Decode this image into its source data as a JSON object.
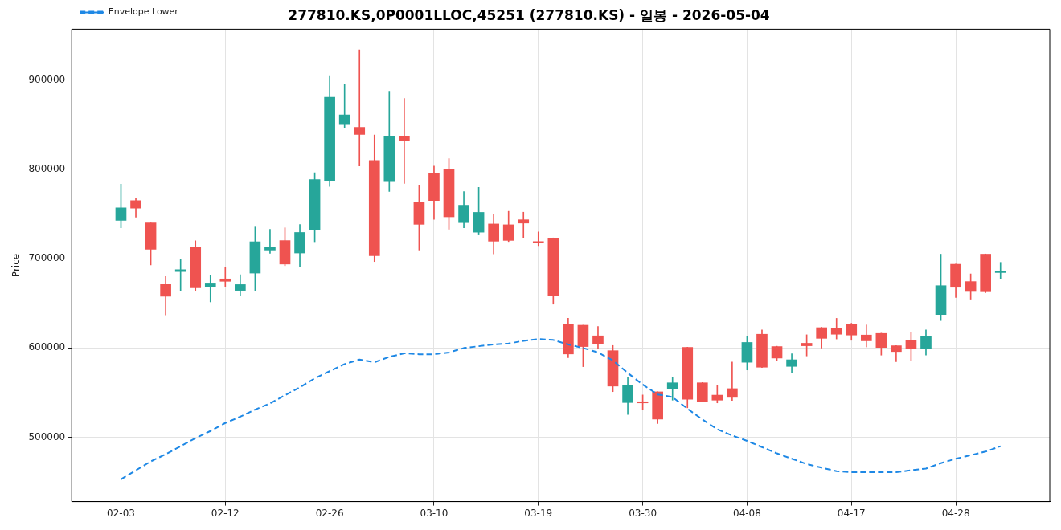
{
  "chart_data": {
    "type": "candlestick",
    "title": "277810.KS,0P0001LLOC,45251 (277810.KS) - 일봉 - 2026-05-04",
    "ylabel": "Price",
    "categories": [
      "02-03",
      null,
      null,
      null,
      null,
      null,
      null,
      "02-12",
      null,
      null,
      null,
      null,
      null,
      null,
      "02-26",
      null,
      null,
      null,
      null,
      null,
      null,
      "03-10",
      null,
      null,
      null,
      null,
      null,
      null,
      "03-19",
      null,
      null,
      null,
      null,
      null,
      null,
      "03-30",
      null,
      null,
      null,
      null,
      null,
      null,
      "04-08",
      null,
      null,
      null,
      null,
      null,
      null,
      "04-17",
      null,
      null,
      null,
      null,
      null,
      null,
      "04-28",
      null,
      null,
      null
    ],
    "ohlc": [
      [
        743000,
        783500,
        734600,
        757000
      ],
      [
        765000,
        767800,
        746600,
        756700
      ],
      [
        740000,
        740000,
        693000,
        710600
      ],
      [
        671000,
        680000,
        637000,
        658000
      ],
      [
        685700,
        699600,
        663600,
        687600
      ],
      [
        712500,
        720000,
        663600,
        667300
      ],
      [
        668200,
        681000,
        651600,
        671900
      ],
      [
        677400,
        690400,
        669000,
        674700
      ],
      [
        664500,
        682000,
        659000,
        671000
      ],
      [
        683900,
        735500,
        664500,
        719000
      ],
      [
        709700,
        732800,
        706000,
        712500
      ],
      [
        720300,
        734600,
        692200,
        694000
      ],
      [
        706400,
        738300,
        691300,
        729400
      ],
      [
        732300,
        796400,
        719000,
        788600
      ],
      [
        787700,
        904300,
        781000,
        880900
      ],
      [
        850100,
        895000,
        846200,
        861000
      ],
      [
        847100,
        934000,
        803900,
        839200
      ],
      [
        810000,
        838500,
        696800,
        703300
      ],
      [
        786400,
        887700,
        775400,
        837500
      ],
      [
        837500,
        879600,
        784400,
        831700
      ],
      [
        763700,
        782600,
        709700,
        738500
      ],
      [
        795100,
        803800,
        744000,
        765300
      ],
      [
        800600,
        812100,
        733000,
        746900
      ],
      [
        740400,
        775200,
        734600,
        759900
      ],
      [
        729700,
        779800,
        726600,
        751900
      ],
      [
        738900,
        750300,
        705400,
        719600
      ],
      [
        738000,
        753100,
        719200,
        720500
      ],
      [
        743600,
        752100,
        723800,
        739900
      ],
      [
        719200,
        730000,
        714600,
        718000
      ],
      [
        722300,
        723300,
        649100,
        658700
      ],
      [
        626500,
        633200,
        589200,
        593300
      ],
      [
        625500,
        625500,
        579100,
        601600
      ],
      [
        613600,
        624000,
        599400,
        604300
      ],
      [
        597000,
        602800,
        551100,
        557300
      ],
      [
        538900,
        567700,
        525600,
        558200
      ],
      [
        539800,
        547400,
        531100,
        538500
      ],
      [
        550900,
        550900,
        515500,
        520400
      ],
      [
        554500,
        566800,
        541600,
        561000
      ],
      [
        600600,
        600900,
        533000,
        542600
      ],
      [
        561000,
        561300,
        539500,
        539800
      ],
      [
        547200,
        558500,
        538500,
        541600
      ],
      [
        554500,
        584300,
        541300,
        544700
      ],
      [
        584000,
        612900,
        575400,
        606200
      ],
      [
        615400,
        620300,
        578200,
        578500
      ],
      [
        601600,
        602000,
        585500,
        588700
      ],
      [
        579400,
        593500,
        572600,
        586800
      ],
      [
        605300,
        614800,
        591100,
        602500
      ],
      [
        622800,
        623100,
        600000,
        610800
      ],
      [
        621900,
        633200,
        610100,
        615400
      ],
      [
        626500,
        627700,
        608600,
        614500
      ],
      [
        614500,
        625800,
        601200,
        608000
      ],
      [
        616300,
        616600,
        592000,
        600600
      ],
      [
        602500,
        602800,
        584600,
        596000
      ],
      [
        608900,
        617500,
        585500,
        599700
      ],
      [
        598800,
        620300,
        592000,
        612600
      ],
      [
        637500,
        705100,
        630700,
        669800
      ],
      [
        693800,
        694000,
        656500,
        668000
      ],
      [
        674400,
        683000,
        654700,
        663300
      ],
      [
        705100,
        705300,
        662000,
        663000
      ],
      [
        684500,
        695900,
        677700,
        685500
      ]
    ],
    "colors": [
      "#26a69a",
      "#ef5350",
      "#ef5350",
      "#ef5350",
      "#26a69a",
      "#ef5350",
      "#26a69a",
      "#ef5350",
      "#26a69a",
      "#26a69a",
      "#26a69a",
      "#ef5350",
      "#26a69a",
      "#26a69a",
      "#26a69a",
      "#26a69a",
      "#ef5350",
      "#ef5350",
      "#26a69a",
      "#ef5350",
      "#ef5350",
      "#ef5350",
      "#ef5350",
      "#26a69a",
      "#26a69a",
      "#ef5350",
      "#ef5350",
      "#ef5350",
      "#ef5350",
      "#ef5350",
      "#ef5350",
      "#ef5350",
      "#ef5350",
      "#ef5350",
      "#26a69a",
      "#ef5350",
      "#ef5350",
      "#26a69a",
      "#ef5350",
      "#ef5350",
      "#ef5350",
      "#ef5350",
      "#26a69a",
      "#ef5350",
      "#ef5350",
      "#26a69a",
      "#ef5350",
      "#ef5350",
      "#ef5350",
      "#ef5350",
      "#ef5350",
      "#ef5350",
      "#ef5350",
      "#ef5350",
      "#26a69a",
      "#26a69a",
      "#ef5350",
      "#ef5350",
      "#ef5350",
      "#26a69a"
    ],
    "series": [
      {
        "type": "line",
        "name": "Envelope Lower",
        "color": "#1e88e5",
        "line_style": "dashed",
        "marker": "none",
        "values": [
          453000,
          463000,
          473000,
          481000,
          490000,
          499000,
          507000,
          516000,
          523000,
          531000,
          538000,
          547000,
          556000,
          566000,
          574000,
          582000,
          587000,
          584000,
          590000,
          594000,
          593000,
          593000,
          595000,
          600000,
          602000,
          604000,
          605000,
          608000,
          610000,
          609000,
          604000,
          600000,
          595000,
          586000,
          572000,
          559000,
          548000,
          545000,
          532000,
          520000,
          509000,
          502000,
          496000,
          489000,
          482000,
          476000,
          470000,
          466000,
          462000,
          461000,
          461000,
          461000,
          461000,
          463000,
          465000,
          471000,
          476000,
          480000,
          484000,
          490000
        ]
      }
    ],
    "ylim": [
      428000,
      957000
    ],
    "yticks": [
      500000,
      600000,
      700000,
      800000,
      900000
    ],
    "grid": true,
    "legend": "top left"
  }
}
